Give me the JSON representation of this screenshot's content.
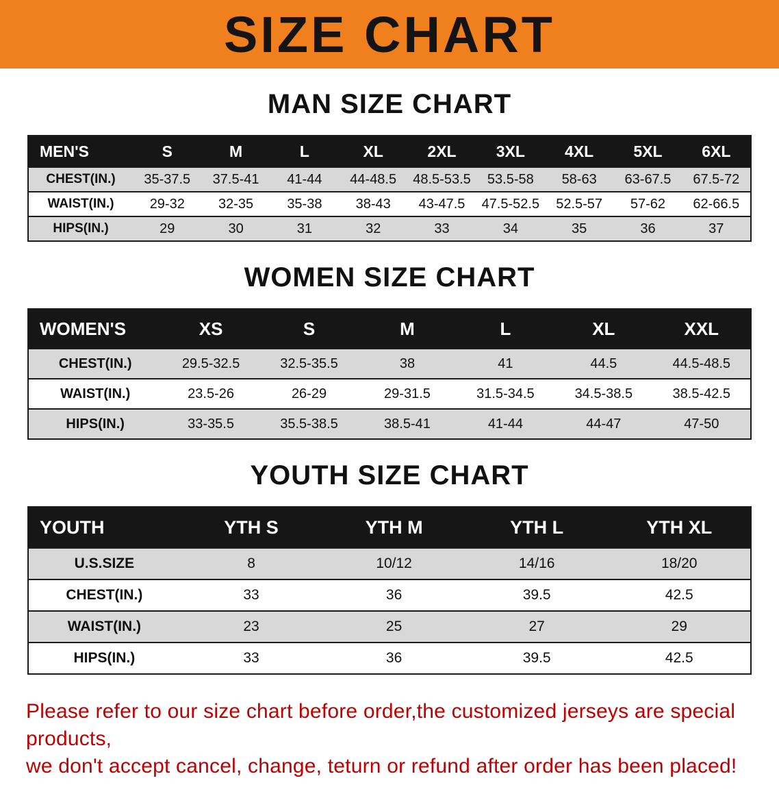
{
  "banner": {
    "title": "SIZE CHART",
    "bg_color": "#f0801e",
    "text_color": "#141414"
  },
  "tables": {
    "men": {
      "heading": "MAN SIZE CHART",
      "header": [
        "MEN'S",
        "S",
        "M",
        "L",
        "XL",
        "2XL",
        "3XL",
        "4XL",
        "5XL",
        "6XL"
      ],
      "rows": [
        [
          "CHEST(IN.)",
          "35-37.5",
          "37.5-41",
          "41-44",
          "44-48.5",
          "48.5-53.5",
          "53.5-58",
          "58-63",
          "63-67.5",
          "67.5-72"
        ],
        [
          "WAIST(IN.)",
          "29-32",
          "32-35",
          "35-38",
          "38-43",
          "43-47.5",
          "47.5-52.5",
          "52.5-57",
          "57-62",
          "62-66.5"
        ],
        [
          "HIPS(IN.)",
          "29",
          "30",
          "31",
          "32",
          "33",
          "34",
          "35",
          "36",
          "37"
        ]
      ]
    },
    "women": {
      "heading": "WOMEN SIZE CHART",
      "header": [
        "WOMEN'S",
        "XS",
        "S",
        "M",
        "L",
        "XL",
        "XXL"
      ],
      "rows": [
        [
          "CHEST(IN.)",
          "29.5-32.5",
          "32.5-35.5",
          "38",
          "41",
          "44.5",
          "44.5-48.5"
        ],
        [
          "WAIST(IN.)",
          "23.5-26",
          "26-29",
          "29-31.5",
          "31.5-34.5",
          "34.5-38.5",
          "38.5-42.5"
        ],
        [
          "HIPS(IN.)",
          "33-35.5",
          "35.5-38.5",
          "38.5-41",
          "41-44",
          "44-47",
          "47-50"
        ]
      ]
    },
    "youth": {
      "heading": "YOUTH SIZE CHART",
      "header": [
        "YOUTH",
        "YTH S",
        "YTH M",
        "YTH L",
        "YTH XL"
      ],
      "rows": [
        [
          "U.S.SIZE",
          "8",
          "10/12",
          "14/16",
          "18/20"
        ],
        [
          "CHEST(IN.)",
          "33",
          "36",
          "39.5",
          "42.5"
        ],
        [
          "WAIST(IN.)",
          "23",
          "25",
          "27",
          "29"
        ],
        [
          "HIPS(IN.)",
          "33",
          "36",
          "39.5",
          "42.5"
        ]
      ]
    }
  },
  "footer": {
    "text_color": "#bf0000",
    "lines": [
      "Please refer to our size chart before order,the customized jerseys are special products,",
      "we don't accept cancel, change, teturn or refund after order has been placed!"
    ]
  }
}
